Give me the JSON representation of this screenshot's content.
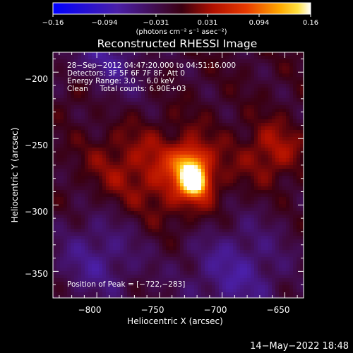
{
  "chart_data": {
    "type": "heatmap",
    "title": "Reconstructed RHESSI Image",
    "xlabel": "Heliocentric X (arcsec)",
    "ylabel": "Heliocentric Y (arcsec)",
    "xlim": [
      -835,
      -635
    ],
    "ylim": [
      -370,
      -185
    ],
    "xticks": [
      -800,
      -750,
      -700,
      -650
    ],
    "yticks": [
      -200,
      -250,
      -300,
      -350
    ],
    "xtick_labels": [
      "−800",
      "−750",
      "−700",
      "−650"
    ],
    "ytick_labels": [
      "−200",
      "−250",
      "−300",
      "−350"
    ],
    "colorbar": {
      "min": -0.16,
      "max": 0.16,
      "colormap": "blue-purple-red-orange-yellow-white",
      "tick_labels": [
        "−0.16",
        "−0.094",
        "−0.031",
        "0.031",
        "0.094",
        "0.16"
      ],
      "units": "(photons cm⁻² s⁻¹ asec⁻²)"
    },
    "info_lines": [
      "28−Sep−2012 04:47:20.000 to 04:51:16.000",
      "Detectors: 3F 5F 6F 7F 8F, Att 0",
      "Energy Range: 3.0 − 6.0 keV",
      "Clean     Total counts: 6.90E+03"
    ],
    "peak_label": "Position of Peak = [−722,−283]",
    "peak": {
      "x": -722,
      "y": -283,
      "value": 0.16
    },
    "sources": [
      {
        "x": -722,
        "y": -283,
        "peak": 0.16,
        "sigma": 7
      },
      {
        "x": -726,
        "y": -270,
        "peak": 0.1,
        "sigma": 9
      },
      {
        "x": -730,
        "y": -280,
        "peak": 0.06,
        "sigma": 24
      },
      {
        "x": -660,
        "y": -260,
        "peak": 0.05,
        "sigma": 16
      },
      {
        "x": -780,
        "y": -270,
        "peak": 0.035,
        "sigma": 22
      },
      {
        "x": -815,
        "y": -215,
        "peak": 0.03,
        "sigma": 12
      },
      {
        "x": -690,
        "y": -350,
        "peak": -0.055,
        "sigma": 30
      },
      {
        "x": -800,
        "y": -340,
        "peak": -0.05,
        "sigma": 25
      },
      {
        "x": -795,
        "y": -190,
        "peak": -0.05,
        "sigma": 25
      }
    ]
  },
  "timestamp": "14−May−2022 18:48"
}
